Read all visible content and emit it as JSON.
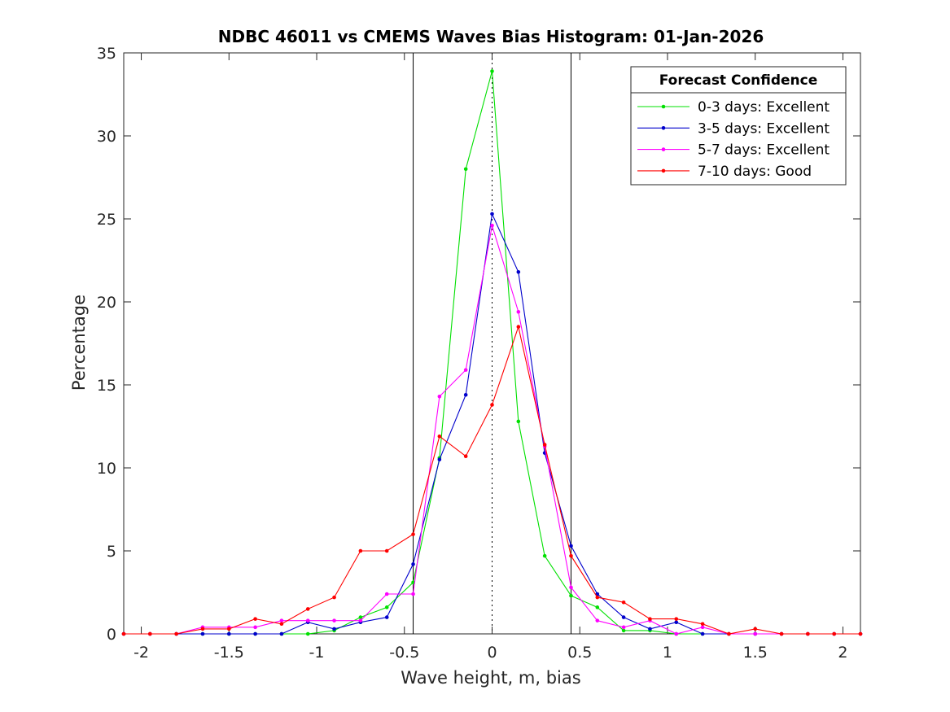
{
  "chart_data": {
    "type": "line",
    "title": "NDBC 46011 vs CMEMS Waves Bias Histogram: 01-Jan-2026",
    "xlabel": "Wave height, m, bias",
    "ylabel": "Percentage",
    "xlim": [
      -2.1,
      2.1
    ],
    "ylim": [
      0,
      35
    ],
    "xticks": [
      -2,
      -1.5,
      -1,
      -0.5,
      0,
      0.5,
      1,
      1.5,
      2
    ],
    "xtick_labels": [
      "-2",
      "-1.5",
      "-1",
      "-0.5",
      "0",
      "0.5",
      "1",
      "1.5",
      "2"
    ],
    "yticks": [
      0,
      5,
      10,
      15,
      20,
      25,
      30,
      35
    ],
    "ytick_labels": [
      "0",
      "5",
      "10",
      "15",
      "20",
      "25",
      "30",
      "35"
    ],
    "vertical_lines": [
      -0.45,
      0.45
    ],
    "zero_line": 0,
    "legend_title": "Forecast Confidence",
    "legend_position": "top-right",
    "x": [
      -2.1,
      -1.95,
      -1.8,
      -1.65,
      -1.5,
      -1.35,
      -1.2,
      -1.05,
      -0.9,
      -0.75,
      -0.6,
      -0.45,
      -0.3,
      -0.15,
      0,
      0.15,
      0.3,
      0.45,
      0.6,
      0.75,
      0.9,
      1.05,
      1.2,
      1.35,
      1.5,
      1.65,
      1.8,
      1.95,
      2.1
    ],
    "series": [
      {
        "name": "0-3 days: Excellent",
        "color": "#00e000",
        "values": [
          0,
          0,
          0,
          0,
          0,
          0,
          0,
          0,
          0.2,
          1.0,
          1.6,
          3.1,
          10.6,
          28.0,
          33.9,
          12.8,
          4.7,
          2.3,
          1.6,
          0.2,
          0.2,
          0,
          0,
          0,
          0,
          0,
          0,
          0,
          0
        ]
      },
      {
        "name": "3-5 days: Excellent",
        "color": "#0000cc",
        "values": [
          0,
          0,
          0,
          0,
          0,
          0,
          0,
          0.7,
          0.3,
          0.7,
          1.0,
          4.2,
          10.5,
          14.4,
          25.3,
          21.8,
          10.9,
          5.3,
          2.4,
          1.0,
          0.3,
          0.7,
          0,
          0,
          0,
          0,
          0,
          0,
          0
        ]
      },
      {
        "name": "5-7 days: Excellent",
        "color": "#ff00ff",
        "values": [
          0,
          0,
          0,
          0.4,
          0.4,
          0.4,
          0.8,
          0.8,
          0.8,
          0.8,
          2.4,
          2.4,
          14.3,
          15.9,
          24.6,
          19.4,
          11.3,
          2.8,
          0.8,
          0.4,
          0.8,
          0,
          0.4,
          0,
          0,
          0,
          0,
          0,
          0
        ]
      },
      {
        "name": "7-10 days: Good",
        "color": "#ff0000",
        "values": [
          0,
          0,
          0,
          0.3,
          0.3,
          0.9,
          0.6,
          1.5,
          2.2,
          5.0,
          5.0,
          6.0,
          11.9,
          10.7,
          13.8,
          18.5,
          11.4,
          4.7,
          2.2,
          1.9,
          0.9,
          0.9,
          0.6,
          0,
          0.3,
          0,
          0,
          0,
          0
        ]
      }
    ]
  }
}
